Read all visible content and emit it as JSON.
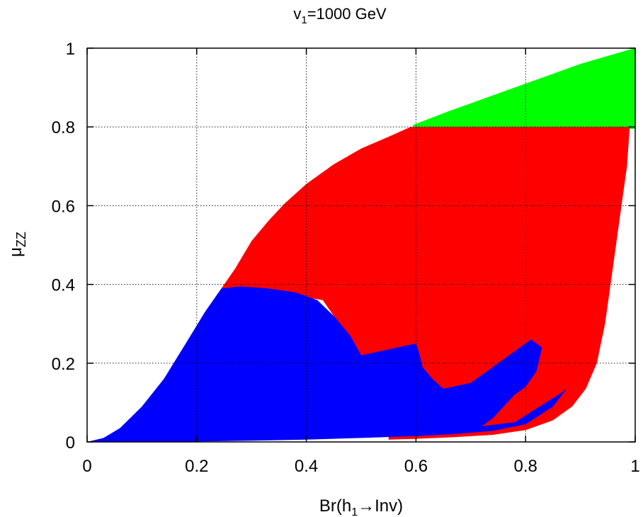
{
  "chart_data": {
    "type": "area",
    "title": "v",
    "title_sub": "1",
    "title_suffix": "=1000 GeV",
    "xlabel_pre": "Br(h",
    "xlabel_sub": "1",
    "xlabel_post": "→Inv)",
    "ylabel_main": "μ",
    "ylabel_sub": "ZZ",
    "xlim": [
      0,
      1
    ],
    "ylim": [
      0,
      1
    ],
    "grid": true,
    "legend": "none",
    "x_ticks": [
      {
        "value": 0,
        "label": "0"
      },
      {
        "value": 0.2,
        "label": "0.2"
      },
      {
        "value": 0.4,
        "label": "0.4"
      },
      {
        "value": 0.6,
        "label": "0.6"
      },
      {
        "value": 0.8,
        "label": "0.8"
      },
      {
        "value": 1,
        "label": "1"
      }
    ],
    "y_ticks": [
      {
        "value": 0,
        "label": "0"
      },
      {
        "value": 0.2,
        "label": "0.2"
      },
      {
        "value": 0.4,
        "label": "0.4"
      },
      {
        "value": 0.6,
        "label": "0.6"
      },
      {
        "value": 0.8,
        "label": "0.8"
      },
      {
        "value": 1,
        "label": "1"
      }
    ],
    "series": [
      {
        "color": "#00ff00",
        "polygon": [
          [
            0.595,
            0.805
          ],
          [
            0.66,
            0.84
          ],
          [
            0.74,
            0.88
          ],
          [
            0.82,
            0.92
          ],
          [
            0.9,
            0.96
          ],
          [
            0.999,
            1.0
          ],
          [
            0.999,
            0.795
          ],
          [
            0.595,
            0.795
          ]
        ]
      },
      {
        "color": "#ff0000",
        "polygon": [
          [
            0.245,
            0.39
          ],
          [
            0.27,
            0.44
          ],
          [
            0.3,
            0.51
          ],
          [
            0.33,
            0.56
          ],
          [
            0.36,
            0.605
          ],
          [
            0.4,
            0.655
          ],
          [
            0.45,
            0.705
          ],
          [
            0.5,
            0.745
          ],
          [
            0.55,
            0.775
          ],
          [
            0.59,
            0.8
          ],
          [
            0.99,
            0.8
          ],
          [
            0.985,
            0.7
          ],
          [
            0.975,
            0.6
          ],
          [
            0.965,
            0.5
          ],
          [
            0.955,
            0.4
          ],
          [
            0.945,
            0.3
          ],
          [
            0.93,
            0.2
          ],
          [
            0.91,
            0.135
          ],
          [
            0.885,
            0.09
          ],
          [
            0.85,
            0.055
          ],
          [
            0.8,
            0.03
          ],
          [
            0.74,
            0.018
          ],
          [
            0.67,
            0.012
          ],
          [
            0.6,
            0.008
          ],
          [
            0.55,
            0.006
          ],
          [
            0.55,
            0.2
          ],
          [
            0.6,
            0.25
          ],
          [
            0.63,
            0.15
          ],
          [
            0.7,
            0.2
          ],
          [
            0.8,
            0.26
          ],
          [
            0.82,
            0.23
          ],
          [
            0.72,
            0.06
          ],
          [
            0.6,
            0.012
          ],
          [
            0.5,
            0.22
          ],
          [
            0.43,
            0.36
          ],
          [
            0.3,
            0.39
          ]
        ]
      },
      {
        "color": "#0000ff",
        "polygon": [
          [
            0.0,
            0.0
          ],
          [
            0.03,
            0.01
          ],
          [
            0.06,
            0.035
          ],
          [
            0.1,
            0.09
          ],
          [
            0.14,
            0.16
          ],
          [
            0.18,
            0.25
          ],
          [
            0.215,
            0.33
          ],
          [
            0.245,
            0.39
          ],
          [
            0.28,
            0.395
          ],
          [
            0.33,
            0.39
          ],
          [
            0.38,
            0.38
          ],
          [
            0.42,
            0.36
          ],
          [
            0.45,
            0.32
          ],
          [
            0.48,
            0.27
          ],
          [
            0.5,
            0.22
          ],
          [
            0.6,
            0.25
          ],
          [
            0.605,
            0.23
          ],
          [
            0.612,
            0.19
          ],
          [
            0.63,
            0.16
          ],
          [
            0.65,
            0.135
          ],
          [
            0.7,
            0.15
          ],
          [
            0.76,
            0.21
          ],
          [
            0.81,
            0.26
          ],
          [
            0.83,
            0.24
          ],
          [
            0.82,
            0.18
          ],
          [
            0.8,
            0.14
          ],
          [
            0.78,
            0.12
          ],
          [
            0.76,
            0.09
          ],
          [
            0.74,
            0.06
          ],
          [
            0.72,
            0.04
          ],
          [
            0.78,
            0.05
          ],
          [
            0.86,
            0.12
          ],
          [
            0.875,
            0.135
          ],
          [
            0.85,
            0.09
          ],
          [
            0.8,
            0.045
          ],
          [
            0.74,
            0.028
          ],
          [
            0.67,
            0.02
          ],
          [
            0.6,
            0.015
          ],
          [
            0.5,
            0.01
          ],
          [
            0.4,
            0.006
          ],
          [
            0.3,
            0.003
          ],
          [
            0.2,
            0.001
          ],
          [
            0.1,
            0.0
          ],
          [
            0.0,
            0.0
          ]
        ]
      }
    ]
  }
}
